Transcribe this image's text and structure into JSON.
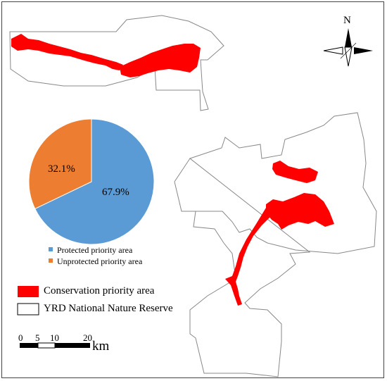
{
  "map": {
    "north_label": "N",
    "colors": {
      "priority": "#ff0000",
      "reserve_outline": "#888888",
      "protected": "#5b9bd5",
      "unprotected": "#ed7d31"
    }
  },
  "chart_data": {
    "type": "pie",
    "slices": [
      {
        "label": "Protected priority area",
        "value": 67.9,
        "value_label": "67.9%",
        "color": "#5b9bd5"
      },
      {
        "label": "Unprotected priority area",
        "value": 32.1,
        "value_label": "32.1%",
        "color": "#ed7d31"
      }
    ],
    "legend": [
      "Protected priority area",
      "Unprotected priority area"
    ],
    "legend_placement": "bottom"
  },
  "legend": {
    "items": [
      {
        "label": "Conservation priority area",
        "symbol": "red-fill"
      },
      {
        "label": "YRD National Nature Reserve",
        "symbol": "outline"
      }
    ]
  },
  "scale_bar": {
    "ticks": [
      "0",
      "5",
      "10",
      "20"
    ],
    "unit": "km"
  }
}
